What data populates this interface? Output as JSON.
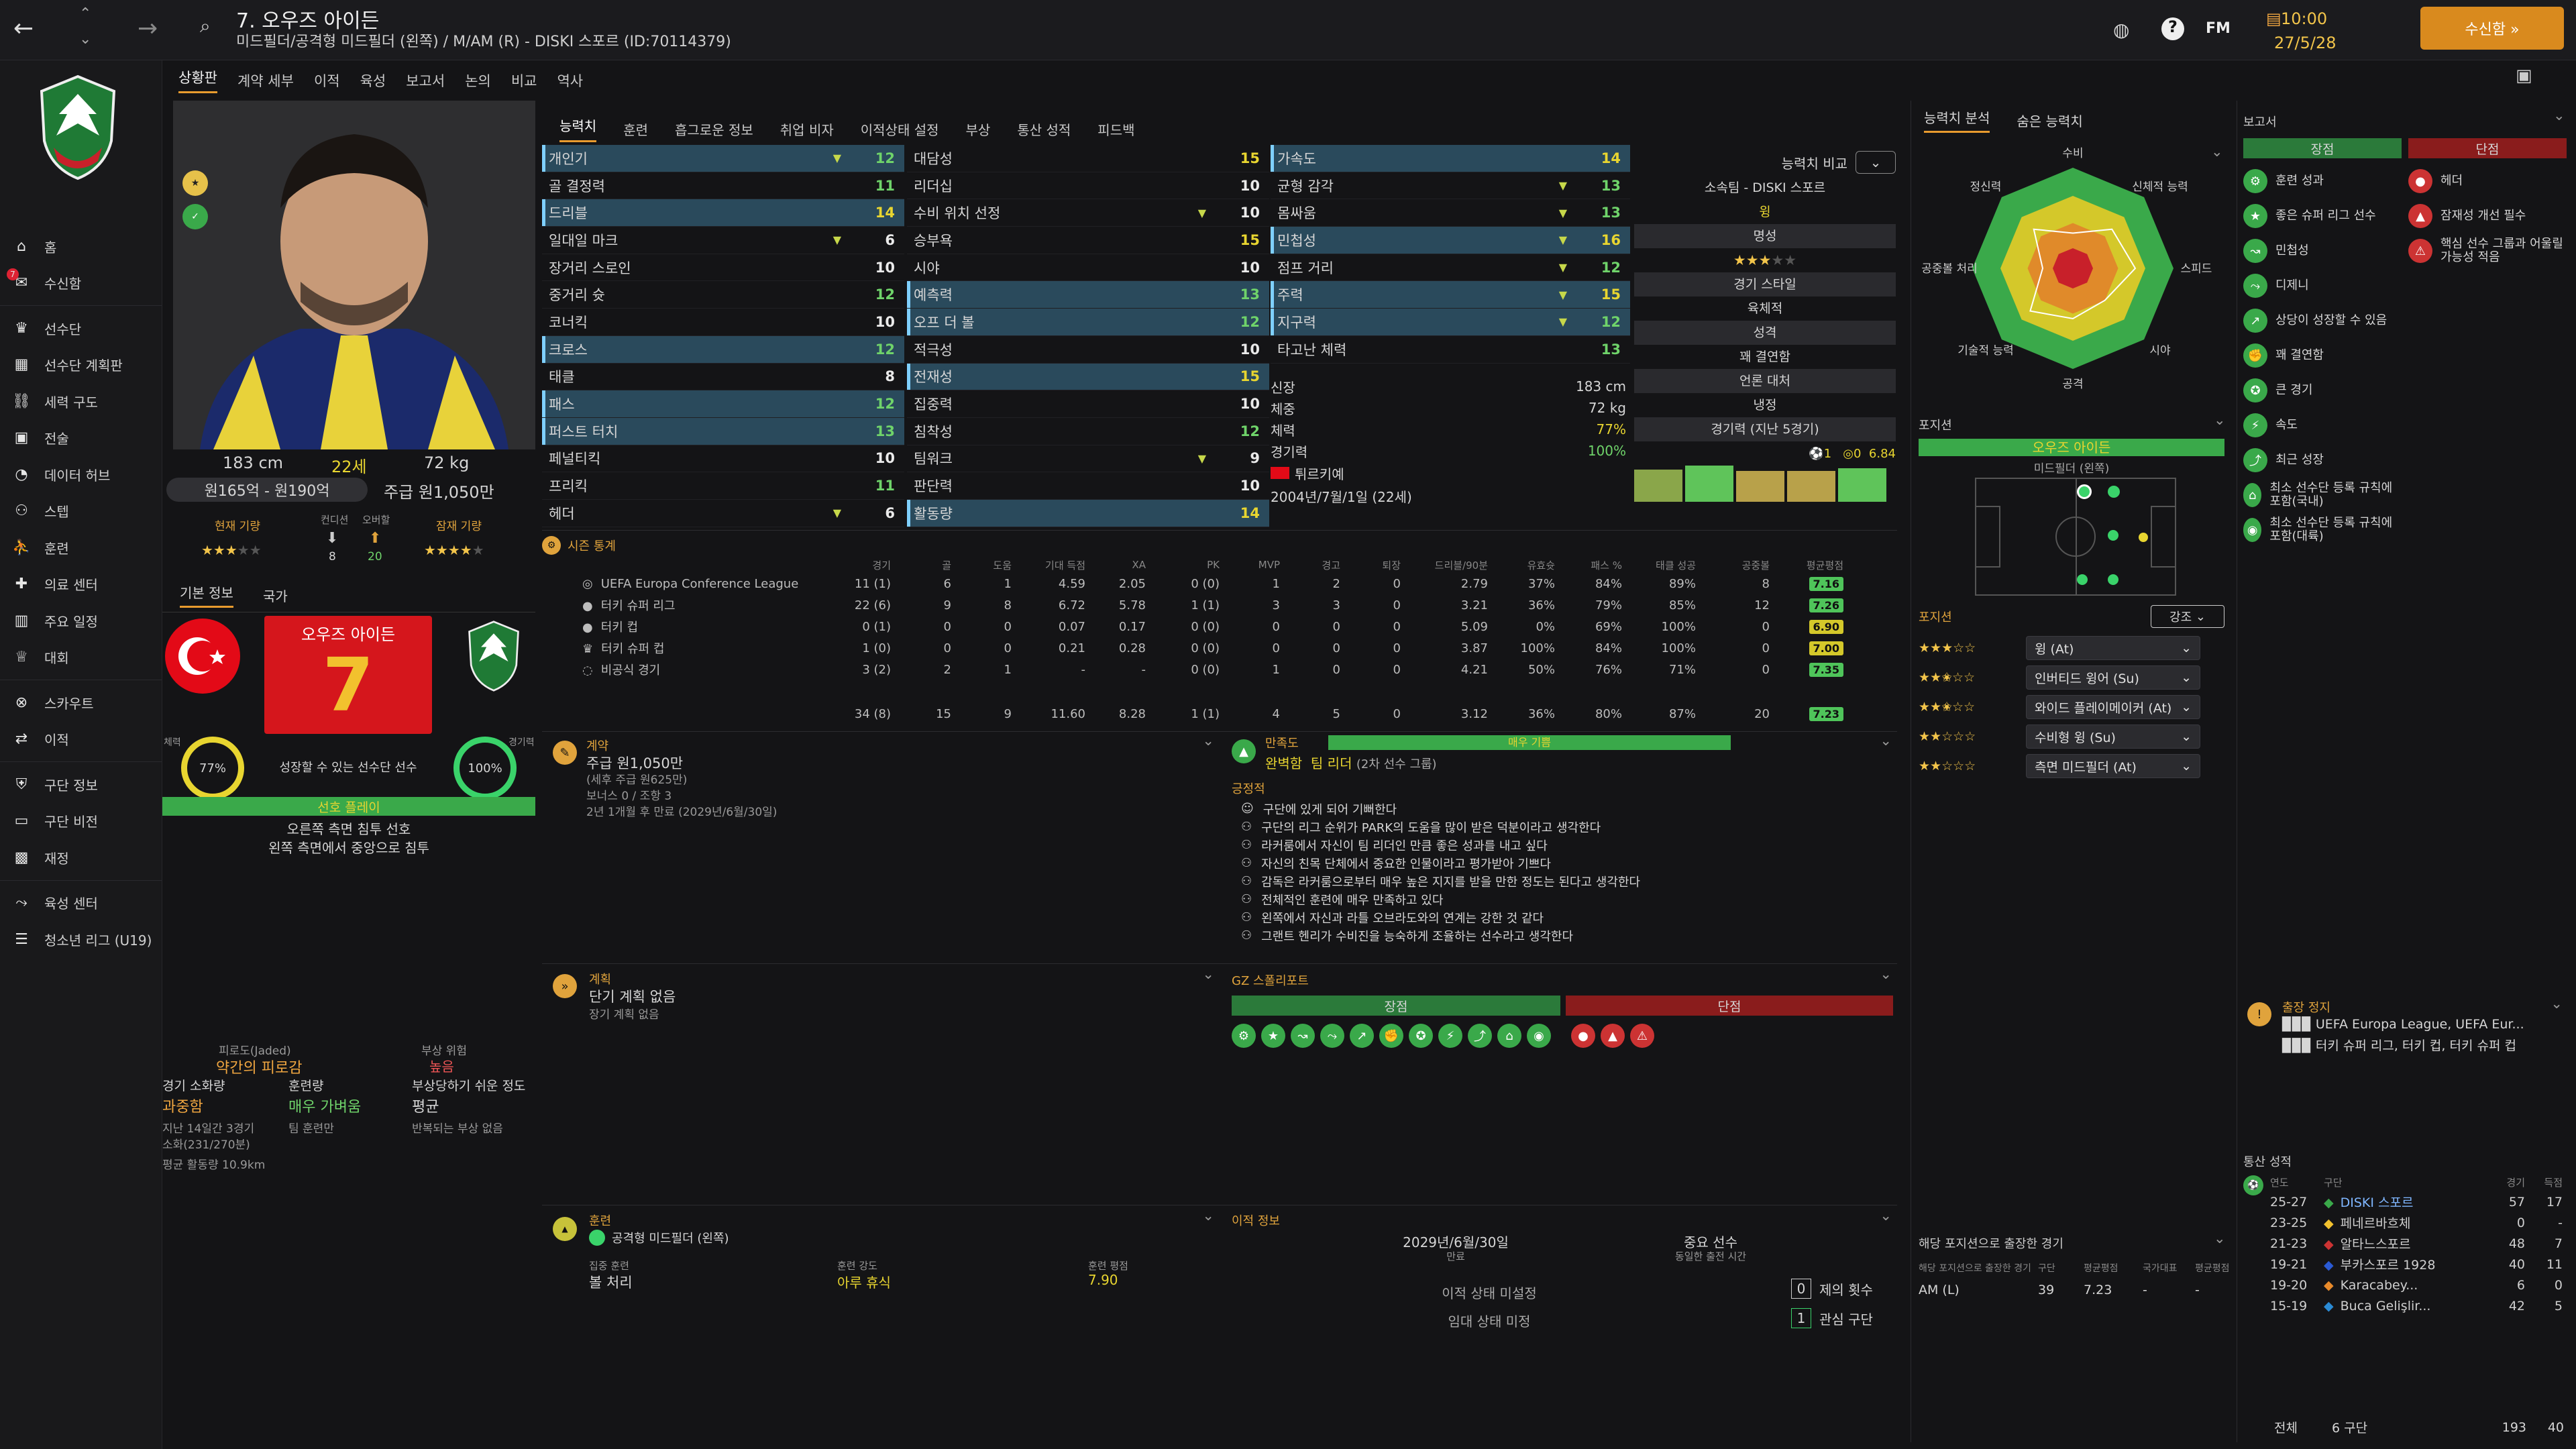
{
  "header": {
    "title": "7. 오우즈 아이든",
    "subtitle": "미드필더/공격형 미드필더 (왼쪽) / M/AM (R) - DISKI 스포르 (ID:70114379)",
    "fm": "FM",
    "time": "10:00",
    "date": "27/5/28",
    "continue_label": "수신함 »"
  },
  "subtabs": [
    "상황판",
    "계약 세부",
    "이적",
    "육성",
    "보고서",
    "논의",
    "비교",
    "역사"
  ],
  "nav": [
    "홈",
    "수신함",
    "선수단",
    "선수단 계획판",
    "세력 구도",
    "전술",
    "데이터 허브",
    "스텝",
    "훈련",
    "의료 센터",
    "주요 일정",
    "대회",
    "스카우트",
    "이적",
    "구단 정보",
    "구단 비전",
    "재정",
    "육성 센터",
    "청소년 리그 (U19)"
  ],
  "profile": {
    "height": "183 cm",
    "age": "22세",
    "weight": "72 kg",
    "value": "원165억 - 원190억",
    "wage": "주급 원1,050만",
    "current_ability": "현재 기량",
    "form": "컨디션",
    "potential": "잠재 기량",
    "apps": "8",
    "goals": "20",
    "ovr_label": "오버할",
    "number": "7",
    "name_plate": "오우즈 아이든",
    "plate_caption": "성장할 수 있는 선수단 선수",
    "fitness_pct": "77%",
    "match_sharp": "100%",
    "fitness_label": "체력",
    "sharp_label": "경기력",
    "role_strip": "선호 플레이",
    "foot_pref": "오른쪽 측면 침투 선호",
    "movement": "왼쪽 측면에서 중앙으로 침투",
    "tab_basic": "기본 정보",
    "tab_nation": "국가",
    "fatigue_label": "피로도(Jaded)",
    "fatigue_val": "약간의 피로감",
    "injury_risk_label": "부상 위험",
    "injury_risk_val": "높음",
    "load_label": "경기 소화량",
    "load_val": "과중함",
    "training_label": "훈련량",
    "training_val": "매우 가벼움",
    "injury_prone_label": "부상당하기 쉬운 정도",
    "injury_prone_val": "평균",
    "load_detail1": "지난 14일간 3경기",
    "load_detail2": "소화(231/270분)",
    "train_detail": "팀 훈련만",
    "injury_detail": "반복되는 부상 없음",
    "avg_km": "평균 활동량 10.9km"
  },
  "player_tabs": [
    "능력치",
    "훈련",
    "흡그로운 정보",
    "취업 비자",
    "이적상태 설정",
    "부상",
    "통산 성적",
    "피드백"
  ],
  "attrs1": [
    [
      "개인기",
      "12"
    ],
    [
      "골 결정력",
      "11"
    ],
    [
      "드리블",
      "14"
    ],
    [
      "일대일 마크",
      "6"
    ],
    [
      "장거리 스로인",
      "10"
    ],
    [
      "중거리 슛",
      "12"
    ],
    [
      "코너킥",
      "10"
    ],
    [
      "크로스",
      "12"
    ],
    [
      "태클",
      "8"
    ],
    [
      "패스",
      "12"
    ],
    [
      "퍼스트 터치",
      "13"
    ],
    [
      "페널티킥",
      "10"
    ],
    [
      "프리킥",
      "11"
    ],
    [
      "헤더",
      "6"
    ]
  ],
  "attrs2": [
    [
      "대담성",
      "15"
    ],
    [
      "리더십",
      "10"
    ],
    [
      "수비 위치 선정",
      "10"
    ],
    [
      "승부욕",
      "15"
    ],
    [
      "시야",
      "10"
    ],
    [
      "예측력",
      "13"
    ],
    [
      "오프 더 볼",
      "12"
    ],
    [
      "적극성",
      "10"
    ],
    [
      "전재성",
      "15"
    ],
    [
      "집중력",
      "10"
    ],
    [
      "침착성",
      "12"
    ],
    [
      "팀워크",
      "9"
    ],
    [
      "판단력",
      "10"
    ],
    [
      "활동량",
      "14"
    ]
  ],
  "attrs3": [
    [
      "가속도",
      "14"
    ],
    [
      "균형 감각",
      "13"
    ],
    [
      "몸싸움",
      "13"
    ],
    [
      "민첩성",
      "16"
    ],
    [
      "점프 거리",
      "12"
    ],
    [
      "주력",
      "15"
    ],
    [
      "지구력",
      "12"
    ],
    [
      "타고난 체력",
      "13"
    ]
  ],
  "bio": {
    "height_l": "신장",
    "height_v": "183 cm",
    "weight_l": "체중",
    "weight_v": "72 kg",
    "fitness_l": "체력",
    "fitness_v": "77%",
    "sharp_l": "경기력",
    "sharp_v": "100%",
    "nation": "튀르키예",
    "dob": "2004년/7월/1일 (22세)"
  },
  "compare": {
    "label": "능력치 비교",
    "club": "소속팀 - DISKI 스포르",
    "role_tag": "윙",
    "fame": "명성",
    "style": "경기 스타일",
    "style_v": "육체적",
    "personality": "성격",
    "personality_v": "꽤 결연함",
    "media": "언론 대처",
    "media_v": "냉정",
    "recent": "경기력 (지난 5경기)",
    "rating": "6.84"
  },
  "season": {
    "title": "시즌 통계",
    "cols": [
      "경기",
      "골",
      "도움",
      "기대 득점",
      "XA",
      "PK",
      "MVP",
      "경고",
      "퇴장",
      "드리블/90분",
      "유효슛",
      "패스 %",
      "태클 성공",
      "공중볼",
      "평균평점"
    ],
    "rows": [
      [
        "UEFA Europa Conference League",
        "11 (1)",
        "6",
        "1",
        "4.59",
        "2.05",
        "0 (0)",
        "1",
        "2",
        "0",
        "2.79",
        "37%",
        "84%",
        "89%",
        "8",
        "7.16"
      ],
      [
        "터키 슈퍼 리그",
        "22 (6)",
        "9",
        "8",
        "6.72",
        "5.78",
        "1 (1)",
        "3",
        "3",
        "0",
        "3.21",
        "36%",
        "79%",
        "85%",
        "12",
        "7.26"
      ],
      [
        "터키 컵",
        "0 (1)",
        "0",
        "0",
        "0.07",
        "0.17",
        "0 (0)",
        "0",
        "0",
        "0",
        "5.09",
        "0%",
        "69%",
        "100%",
        "0",
        "6.90"
      ],
      [
        "터키 슈퍼 컵",
        "1 (0)",
        "0",
        "0",
        "0.21",
        "0.28",
        "0 (0)",
        "0",
        "0",
        "0",
        "3.87",
        "100%",
        "84%",
        "100%",
        "0",
        "7.00"
      ],
      [
        "비공식 경기",
        "3 (2)",
        "2",
        "1",
        "-",
        "-",
        "0 (0)",
        "1",
        "0",
        "0",
        "4.21",
        "50%",
        "76%",
        "71%",
        "0",
        "7.35"
      ]
    ],
    "total": [
      "34 (8)",
      "15",
      "9",
      "11.60",
      "8.28",
      "1 (1)",
      "4",
      "5",
      "0",
      "3.12",
      "36%",
      "80%",
      "87%",
      "20",
      "7.23"
    ]
  },
  "contract": {
    "title": "계약",
    "wage": "주급 원1,050만",
    "wage_note": "(세후 주급 원625만)",
    "bonus": "보너스 0 / 조항 3",
    "expiry": "2년 1개월 후 만료 (2029년/6월/30일)"
  },
  "happiness": {
    "title": "만족도",
    "level": "매우 기쁨",
    "status": "완벽함",
    "leader": "팀 리더",
    "group": "(2차 선수 그룹)",
    "positive": "긍정적",
    "items": [
      "구단에 있게 되어 기뻐한다",
      "구단의 리그 순위가 PARK의 도움을 많이 받은 덕분이라고 생각한다",
      "라커룸에서 자신이 팀 리더인 만큼 좋은 성과를 내고 싶다",
      "자신의 친목 단체에서 중요한 인물이라고 평가받아 기쁘다",
      "감독은 라커룸으로부터 매우 높은 지지를 받을 만한 정도는 된다고 생각한다",
      "전체적인 훈련에 매우 만족하고 있다",
      "왼쪽에서 자신과 라틀 오브라도와의 연계는 강한 것 같다",
      "그랜트 헨리가 수비진을 능숙하게 조율하는 선수라고 생각한다"
    ]
  },
  "plans": {
    "title": "계획",
    "v1": "단기 계획 없음",
    "v2": "장기 계획 없음"
  },
  "scout": {
    "title": "GZ 스폴리포트",
    "pros": "장점",
    "cons": "단점"
  },
  "training": {
    "title": "훈련",
    "pos": "공격형 미드필더 (왼쪽)",
    "focus_l": "집중 훈련",
    "focus_v": "볼 처리",
    "intensity_l": "훈련 강도",
    "intensity_v": "아루 휴식",
    "rating_l": "훈련 평점",
    "rating_v": "7.90"
  },
  "transfer": {
    "title": "이적 정보",
    "date": "2029년/6월/30일",
    "date_l": "만료",
    "role": "중요 선수",
    "role_l": "동일한 출전 시간",
    "status1": "이적 상태 미설정",
    "status2": "임대 상태 미정",
    "offers": "0",
    "offers_l": "제의 횟수",
    "interest": "1",
    "interest_l": "관심 구단"
  },
  "right": {
    "tab1": "능력치 분석",
    "tab2": "숨은 능력치",
    "radar": [
      "수비",
      "신체적 능력",
      "스피드",
      "시야",
      "공격",
      "기술적 능력",
      "공중볼 처리",
      "정신력"
    ],
    "pos_title": "포지션",
    "pos_name": "오우즈 아이든",
    "pos_sub": "미드필더 (왼쪽)",
    "roles_title": "포지션",
    "emph": "강조",
    "roles": [
      [
        "윙 (At)",
        "3"
      ],
      [
        "인버티드 윙어 (Su)",
        "2.5"
      ],
      [
        "와이드 플레이메이커 (At)",
        "2.5"
      ],
      [
        "수비형 윙 (Su)",
        "2"
      ],
      [
        "측면 미드필더 (At)",
        "2"
      ]
    ],
    "played_title": "해당 포지션으로 출장한 경기",
    "played_cols": [
      "해당 포지션으로 출장한 경기",
      "구단",
      "평균평점",
      "국가대표",
      "평균평점"
    ],
    "played_row": [
      "AM (L)",
      "39",
      "7.23",
      "-",
      "-"
    ]
  },
  "report": {
    "title": "보고서",
    "pros": "장점",
    "cons": "단점",
    "pros_items": [
      "훈련 성과",
      "좋은 슈퍼 리그 선수",
      "민첩성",
      "디제니",
      "상당이 성장할 수 있음",
      "꽤 결연함",
      "큰 경기",
      "속도",
      "최근 성장",
      "최소 선수단 등록 규칙에 포함(국내)",
      "최소 선수단 등록 규칙에 포함(대륙)"
    ],
    "cons_items": [
      "헤더",
      "잠재성 개선 필수",
      "핵심 선수 그룹과 어울릴 가능성 적음"
    ],
    "suspension": "출장 정지",
    "susp1": "UEFA Europa League, UEFA Eur...",
    "susp2": "터키 슈퍼 리그, 터키 컵, 터키 슈퍼 컵"
  },
  "history": {
    "title": "통산 성적",
    "cols": [
      "연도",
      "구단",
      "경기",
      "득점"
    ],
    "rows": [
      [
        "25-27",
        "DISKI 스포르",
        "57",
        "17"
      ],
      [
        "23-25",
        "페네르바흐체",
        "0",
        "-"
      ],
      [
        "21-23",
        "알타느스포르",
        "48",
        "7"
      ],
      [
        "19-21",
        "부카스포르 1928",
        "40",
        "11"
      ],
      [
        "19-20",
        "Karacabey...",
        "6",
        "0"
      ],
      [
        "15-19",
        "Buca Gelişlir...",
        "42",
        "5"
      ]
    ],
    "total_l": "전체",
    "total_clubs": "6 구단",
    "total_apps": "193",
    "total_goals": "40"
  }
}
